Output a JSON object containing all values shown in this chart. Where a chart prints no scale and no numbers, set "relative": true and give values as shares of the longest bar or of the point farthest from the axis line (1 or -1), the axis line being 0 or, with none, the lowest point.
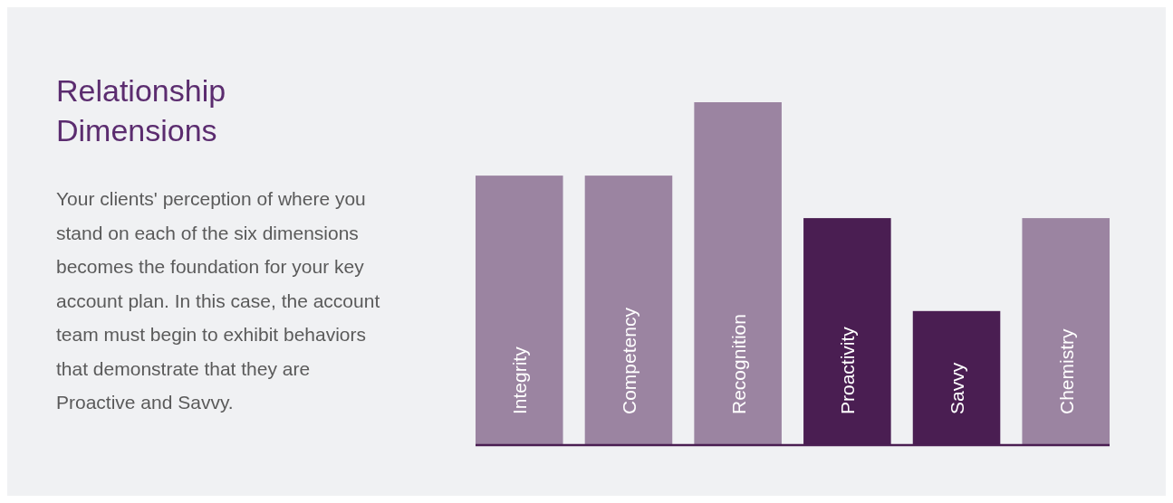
{
  "chart_data": {
    "type": "bar",
    "title": "Relationship Dimensions",
    "subtitle": "Your clients' perception of where you stand on each of the six dimensions becomes the foundation for your key account plan. In this case, the account team must begin to exhibit behaviors that demonstrate that they are Proactive and Savvy.",
    "relative": true,
    "categories": [
      "Integrity",
      "Competency",
      "Recognition",
      "Proactivity",
      "Savvy",
      "Chemistry"
    ],
    "values": [
      0.786,
      0.786,
      1,
      0.662,
      0.391,
      0.662
    ],
    "colors": [
      "#9b84a1",
      "#9b84a1",
      "#9b84a1",
      "#4a1e52",
      "#4a1e52",
      "#9b84a1"
    ]
  }
}
